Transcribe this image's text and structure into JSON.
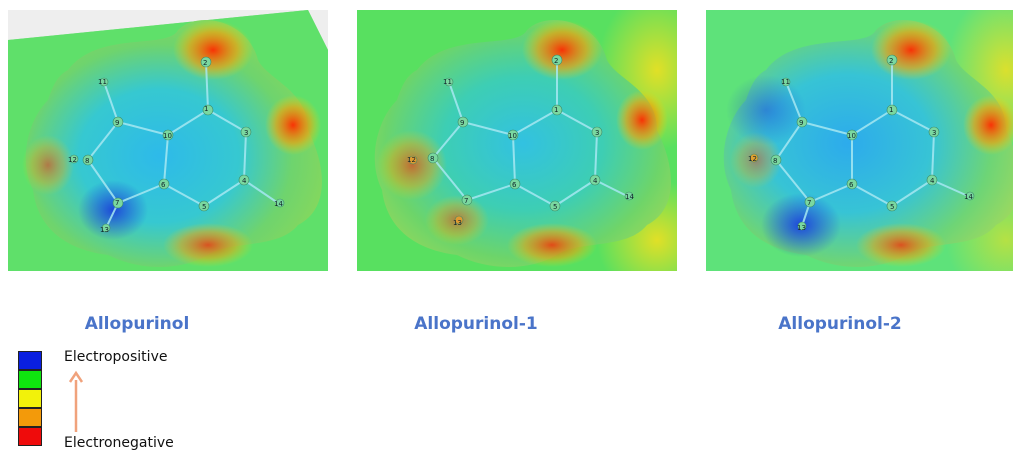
{
  "panels": [
    {
      "caption": "Allopurinol",
      "bg": "#5fe06a"
    },
    {
      "caption": "Allopurinol-1",
      "bg": "#58e060"
    },
    {
      "caption": "Allopurinol-2",
      "bg": "#5ee27a"
    }
  ],
  "atom_labels": [
    "1",
    "2",
    "3",
    "4",
    "5",
    "6",
    "7",
    "8",
    "9",
    "10",
    "11",
    "12",
    "13",
    "14"
  ],
  "legend": {
    "top_label": "Electropositive",
    "bottom_label": "Electronegative",
    "colors": [
      "#0a1fe0",
      "#0fe40f",
      "#f2f20a",
      "#f39a0a",
      "#ef0b0b"
    ],
    "arrow_color": "#f0a27c"
  }
}
